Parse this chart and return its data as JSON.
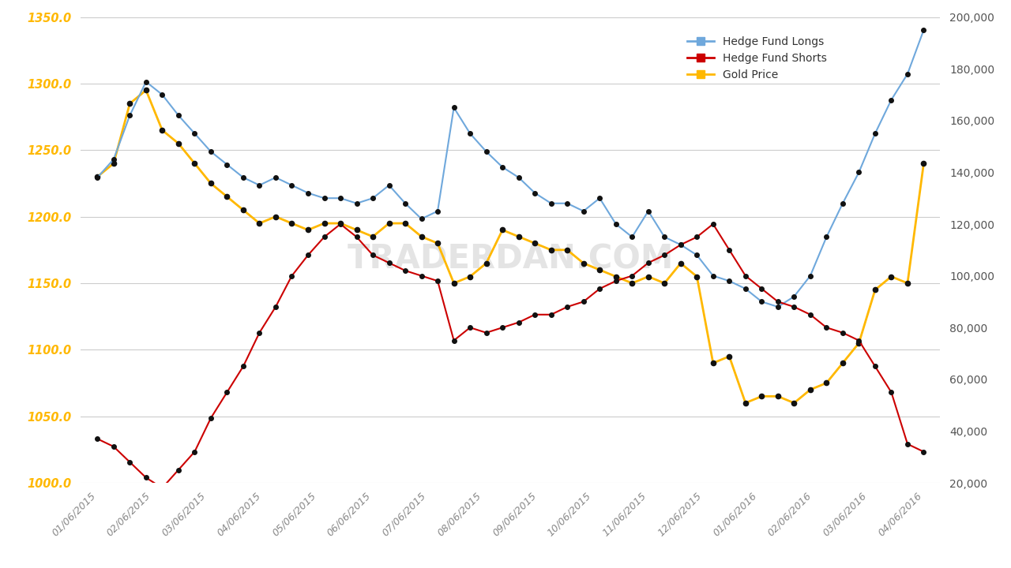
{
  "x_tick_labels": [
    "01/06/2015",
    "02/06/2015",
    "03/06/2015",
    "04/06/2015",
    "05/06/2015",
    "06/06/2015",
    "07/06/2015",
    "08/06/2015",
    "09/06/2015",
    "10/06/2015",
    "11/06/2015",
    "12/06/2015",
    "01/06/2016",
    "02/06/2016",
    "03/06/2016",
    "04/06/2016"
  ],
  "n_points": 52,
  "gold_price": [
    1230,
    1240,
    1285,
    1295,
    1265,
    1255,
    1240,
    1225,
    1215,
    1205,
    1195,
    1200,
    1195,
    1190,
    1195,
    1195,
    1190,
    1185,
    1195,
    1195,
    1185,
    1180,
    1150,
    1155,
    1165,
    1190,
    1185,
    1180,
    1175,
    1175,
    1165,
    1160,
    1155,
    1150,
    1155,
    1150,
    1165,
    1155,
    1090,
    1095,
    1060,
    1065,
    1065,
    1060,
    1070,
    1075,
    1090,
    1105,
    1145,
    1155,
    1150,
    1240
  ],
  "hedge_fund_longs": [
    138000,
    145000,
    162000,
    175000,
    170000,
    162000,
    155000,
    148000,
    143000,
    138000,
    135000,
    138000,
    135000,
    132000,
    130000,
    130000,
    128000,
    130000,
    135000,
    128000,
    122000,
    125000,
    165000,
    155000,
    148000,
    142000,
    138000,
    132000,
    128000,
    128000,
    125000,
    130000,
    120000,
    115000,
    125000,
    115000,
    112000,
    108000,
    100000,
    98000,
    95000,
    90000,
    88000,
    92000,
    100000,
    115000,
    128000,
    140000,
    155000,
    168000,
    178000,
    195000
  ],
  "hedge_fund_shorts": [
    37000,
    34000,
    28000,
    22000,
    18000,
    25000,
    32000,
    45000,
    55000,
    65000,
    78000,
    88000,
    100000,
    108000,
    115000,
    120000,
    115000,
    108000,
    105000,
    102000,
    100000,
    98000,
    75000,
    80000,
    78000,
    80000,
    82000,
    85000,
    85000,
    88000,
    90000,
    95000,
    98000,
    100000,
    105000,
    108000,
    112000,
    115000,
    120000,
    110000,
    100000,
    95000,
    90000,
    88000,
    85000,
    80000,
    78000,
    75000,
    65000,
    55000,
    35000,
    32000
  ],
  "gold_color": "#FFB800",
  "longs_color": "#6FA8DC",
  "shorts_color": "#CC0000",
  "marker_color": "#111111",
  "background_color": "#FFFFFF",
  "grid_color": "#CCCCCC",
  "left_axis_color": "#FFB800",
  "right_axis_color": "#555555",
  "yleft_min": 1000.0,
  "yleft_max": 1350.0,
  "yright_min": 20000,
  "yright_max": 200000,
  "watermark": "TRADERDAN.COM",
  "legend_labels": [
    "Hedge Fund Longs",
    "Hedge Fund Shorts",
    "Gold Price"
  ],
  "left_ticks": [
    1000.0,
    1050.0,
    1100.0,
    1150.0,
    1200.0,
    1250.0,
    1300.0,
    1350.0
  ],
  "right_ticks": [
    20000,
    40000,
    60000,
    80000,
    100000,
    120000,
    140000,
    160000,
    180000,
    200000
  ]
}
